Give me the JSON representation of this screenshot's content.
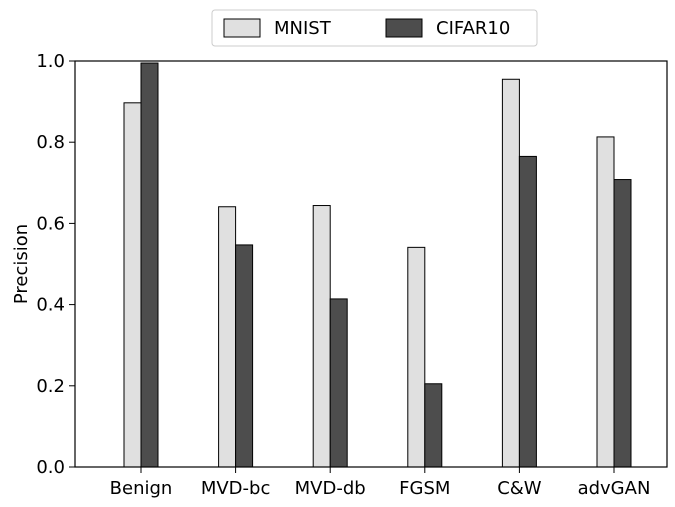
{
  "chart_data": {
    "type": "bar",
    "categories": [
      "Benign",
      "MVD-bc",
      "MVD-db",
      "FGSM",
      "C&W",
      "advGAN"
    ],
    "series": [
      {
        "name": "MNIST",
        "color": "#e0e0e0",
        "values": [
          0.897,
          0.641,
          0.644,
          0.541,
          0.955,
          0.813
        ]
      },
      {
        "name": "CIFAR10",
        "color": "#4d4d4d",
        "values": [
          0.995,
          0.547,
          0.414,
          0.205,
          0.765,
          0.708
        ]
      }
    ],
    "xlabel": "",
    "ylabel": "Precision",
    "ylim": [
      0,
      1.0
    ],
    "yticks": [
      "0.0",
      "0.2",
      "0.4",
      "0.6",
      "0.8",
      "1.0"
    ],
    "legend_position": "top-center",
    "grid": false
  }
}
